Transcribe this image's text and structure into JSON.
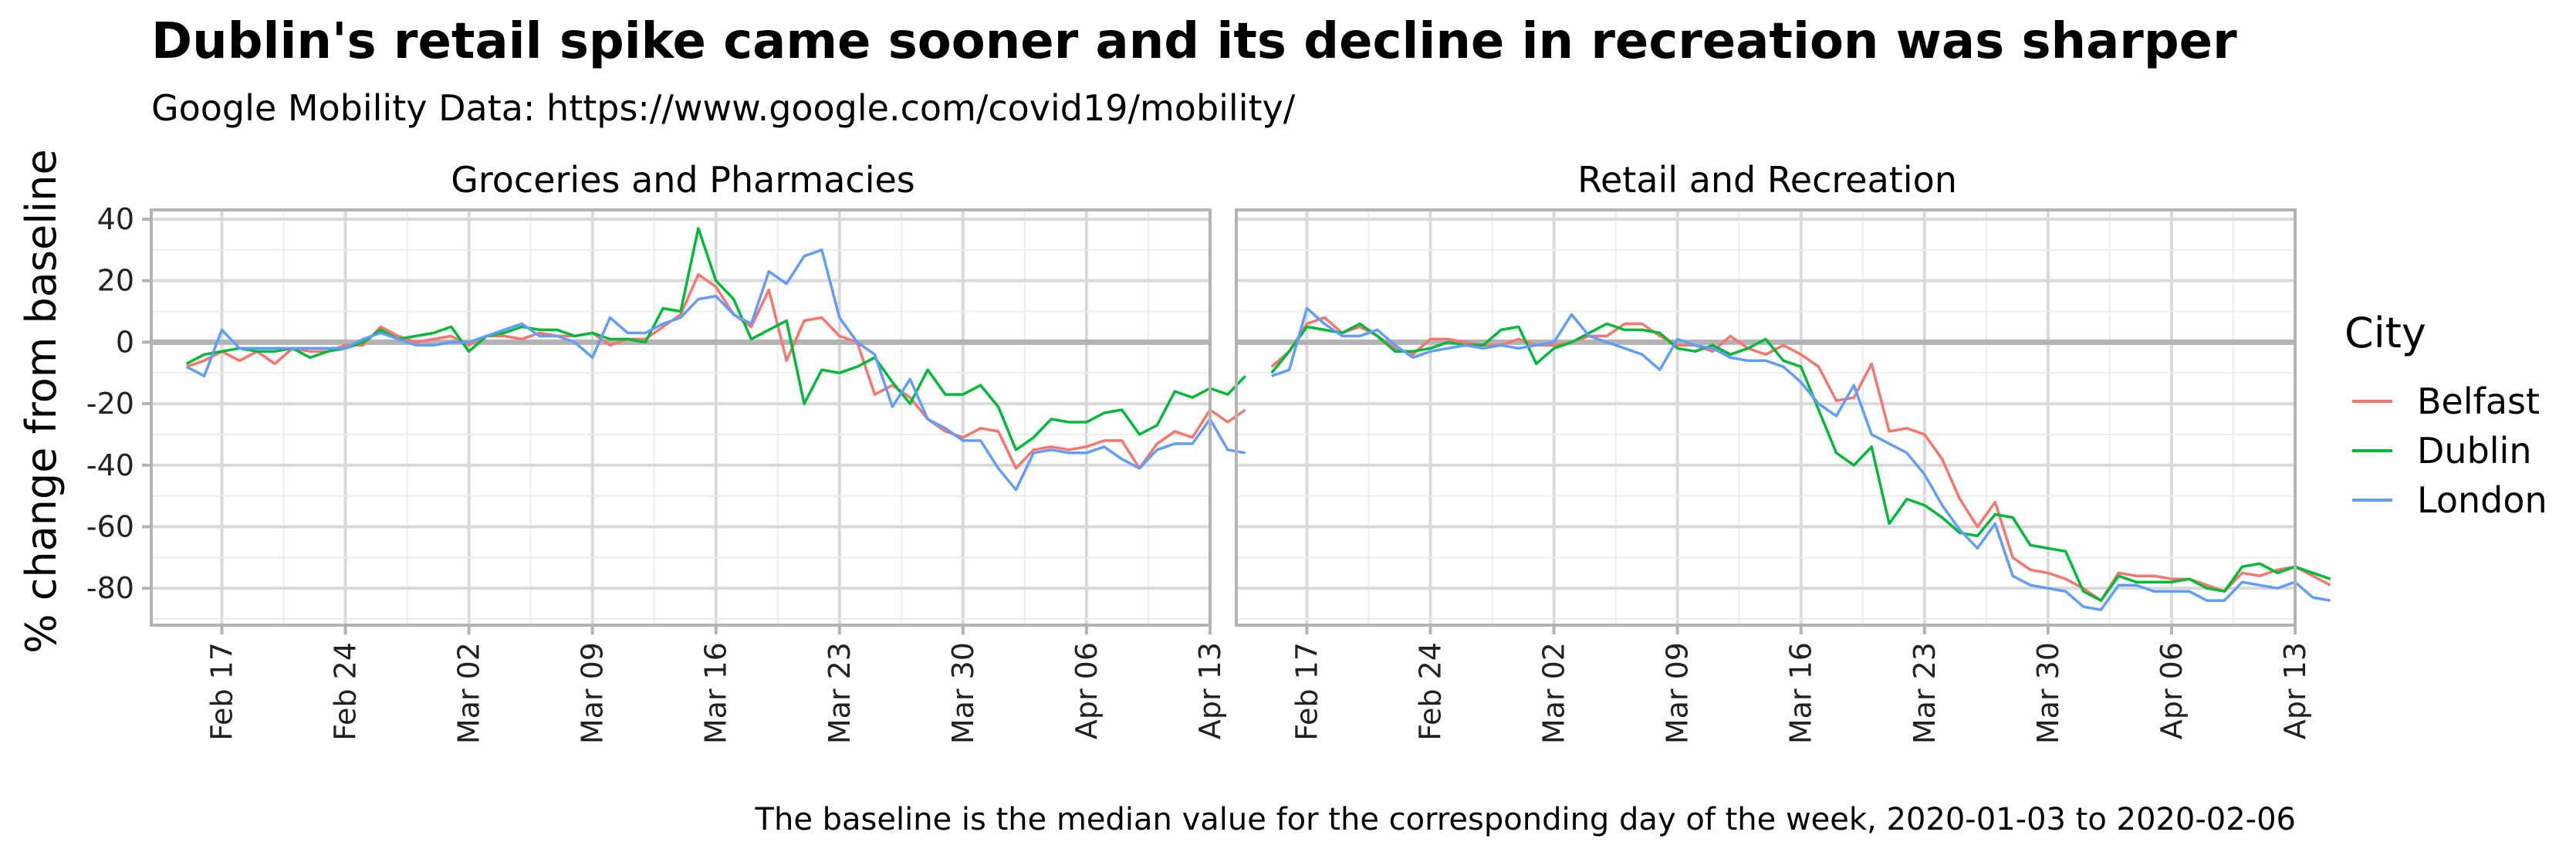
{
  "chart_data": {
    "type": "line",
    "title": "Dublin's retail spike came sooner and its decline in recreation was sharper",
    "subtitle": "Google Mobility Data: https://www.google.com/covid19/mobility/",
    "ylabel": "% change from baseline",
    "caption": "The baseline is the median value for the corresponding day of the week, 2020-01-03 to 2020-02-06",
    "legend": {
      "title": "City",
      "position": "right"
    },
    "colors": {
      "Belfast": "#F8766D",
      "Dublin": "#00BA38",
      "London": "#619CFF"
    },
    "x_ticks": [
      "Feb 17",
      "Feb 24",
      "Mar 02",
      "Mar 09",
      "Mar 16",
      "Mar 23",
      "Mar 30",
      "Apr 06",
      "Apr 13"
    ],
    "y_ticks": [
      "40",
      "20",
      "0",
      "-20",
      "-40",
      "-60",
      "-80"
    ],
    "xlim": [
      "2020-02-13",
      "2020-04-13"
    ],
    "ylim": [
      -92,
      43
    ],
    "baseline": 0,
    "grid": true,
    "start_date": "2020-02-15",
    "panels": [
      {
        "title": "Groceries and Pharmacies",
        "series": [
          {
            "name": "Belfast",
            "values": [
              -8,
              -6,
              -3,
              -6,
              -3,
              -7,
              -2,
              -3,
              -3,
              -1,
              -1,
              5,
              2,
              0,
              1,
              2,
              -1,
              2,
              2,
              1,
              3,
              2,
              2,
              3,
              -1,
              1,
              1,
              5,
              9,
              22,
              18,
              9,
              5,
              17,
              -6,
              7,
              8,
              2,
              0,
              -17,
              -14,
              -18,
              -25,
              -29,
              -31,
              -28,
              -29,
              -41,
              -35,
              -34,
              -35,
              -34,
              -32,
              -32,
              -41,
              -33,
              -29,
              -31,
              -22,
              -26,
              -22
            ]
          },
          {
            "name": "Dublin",
            "values": [
              -7,
              -4,
              -3,
              -2,
              -3,
              -3,
              -2,
              -5,
              -3,
              -2,
              0,
              4,
              1,
              2,
              3,
              5,
              -3,
              2,
              3,
              5,
              4,
              4,
              2,
              3,
              1,
              1,
              0,
              11,
              10,
              37,
              20,
              14,
              1,
              4,
              7,
              -20,
              -9,
              -10,
              -8,
              -5,
              -13,
              -20,
              -9,
              -17,
              -17,
              -14,
              -21,
              -35,
              -31,
              -25,
              -26,
              -26,
              -23,
              -22,
              -30,
              -27,
              -16,
              -18,
              -15,
              -17,
              -11
            ]
          },
          {
            "name": "London",
            "values": [
              -8,
              -11,
              4,
              -2,
              -2,
              -2,
              -2,
              -2,
              -2,
              -2,
              1,
              3,
              1,
              -1,
              -1,
              0,
              0,
              2,
              4,
              6,
              2,
              2,
              0,
              -5,
              8,
              3,
              3,
              6,
              8,
              14,
              15,
              9,
              6,
              23,
              19,
              28,
              30,
              8,
              0,
              -4,
              -21,
              -12,
              -25,
              -28,
              -32,
              -32,
              -41,
              -48,
              -36,
              -35,
              -36,
              -36,
              -34,
              -38,
              -41,
              -35,
              -33,
              -33,
              -25,
              -35,
              -36
            ]
          }
        ]
      },
      {
        "title": "Retail and Recreation",
        "series": [
          {
            "name": "Belfast",
            "values": [
              -8,
              -3,
              6,
              8,
              3,
              5,
              2,
              -2,
              -4,
              1,
              1,
              0,
              -1,
              -1,
              1,
              -1,
              -1,
              0,
              2,
              2,
              6,
              6,
              2,
              -1,
              -1,
              -3,
              2,
              -2,
              -4,
              -1,
              -4,
              -8,
              -19,
              -18,
              -7,
              -29,
              -28,
              -30,
              -38,
              -51,
              -60,
              -52,
              -70,
              -74,
              -75,
              -77,
              -80,
              -84,
              -75,
              -76,
              -76,
              -77,
              -77,
              -79,
              -81,
              -75,
              -76,
              -74,
              -73,
              -76,
              -79
            ]
          },
          {
            "name": "Dublin",
            "values": [
              -10,
              -3,
              5,
              4,
              3,
              6,
              2,
              -3,
              -3,
              -2,
              0,
              -1,
              -1,
              4,
              5,
              -7,
              -2,
              0,
              3,
              6,
              4,
              4,
              3,
              -2,
              -3,
              -1,
              -4,
              -2,
              1,
              -6,
              -8,
              -22,
              -36,
              -40,
              -34,
              -59,
              -51,
              -53,
              -57,
              -62,
              -63,
              -56,
              -57,
              -66,
              -67,
              -68,
              -81,
              -84,
              -76,
              -78,
              -78,
              -78,
              -77,
              -80,
              -81,
              -73,
              -72,
              -75,
              -73,
              -75,
              -77
            ]
          },
          {
            "name": "London",
            "values": [
              -11,
              -9,
              11,
              6,
              2,
              2,
              4,
              -1,
              -5,
              -3,
              -2,
              -1,
              -2,
              -1,
              -2,
              -1,
              0,
              9,
              2,
              0,
              -2,
              -4,
              -9,
              1,
              -1,
              -2,
              -5,
              -6,
              -6,
              -8,
              -13,
              -20,
              -24,
              -14,
              -30,
              -33,
              -36,
              -43,
              -53,
              -61,
              -67,
              -59,
              -76,
              -79,
              -80,
              -81,
              -86,
              -87,
              -79,
              -79,
              -81,
              -81,
              -81,
              -84,
              -84,
              -78,
              -79,
              -80,
              -78,
              -83,
              -84
            ]
          }
        ]
      }
    ]
  }
}
